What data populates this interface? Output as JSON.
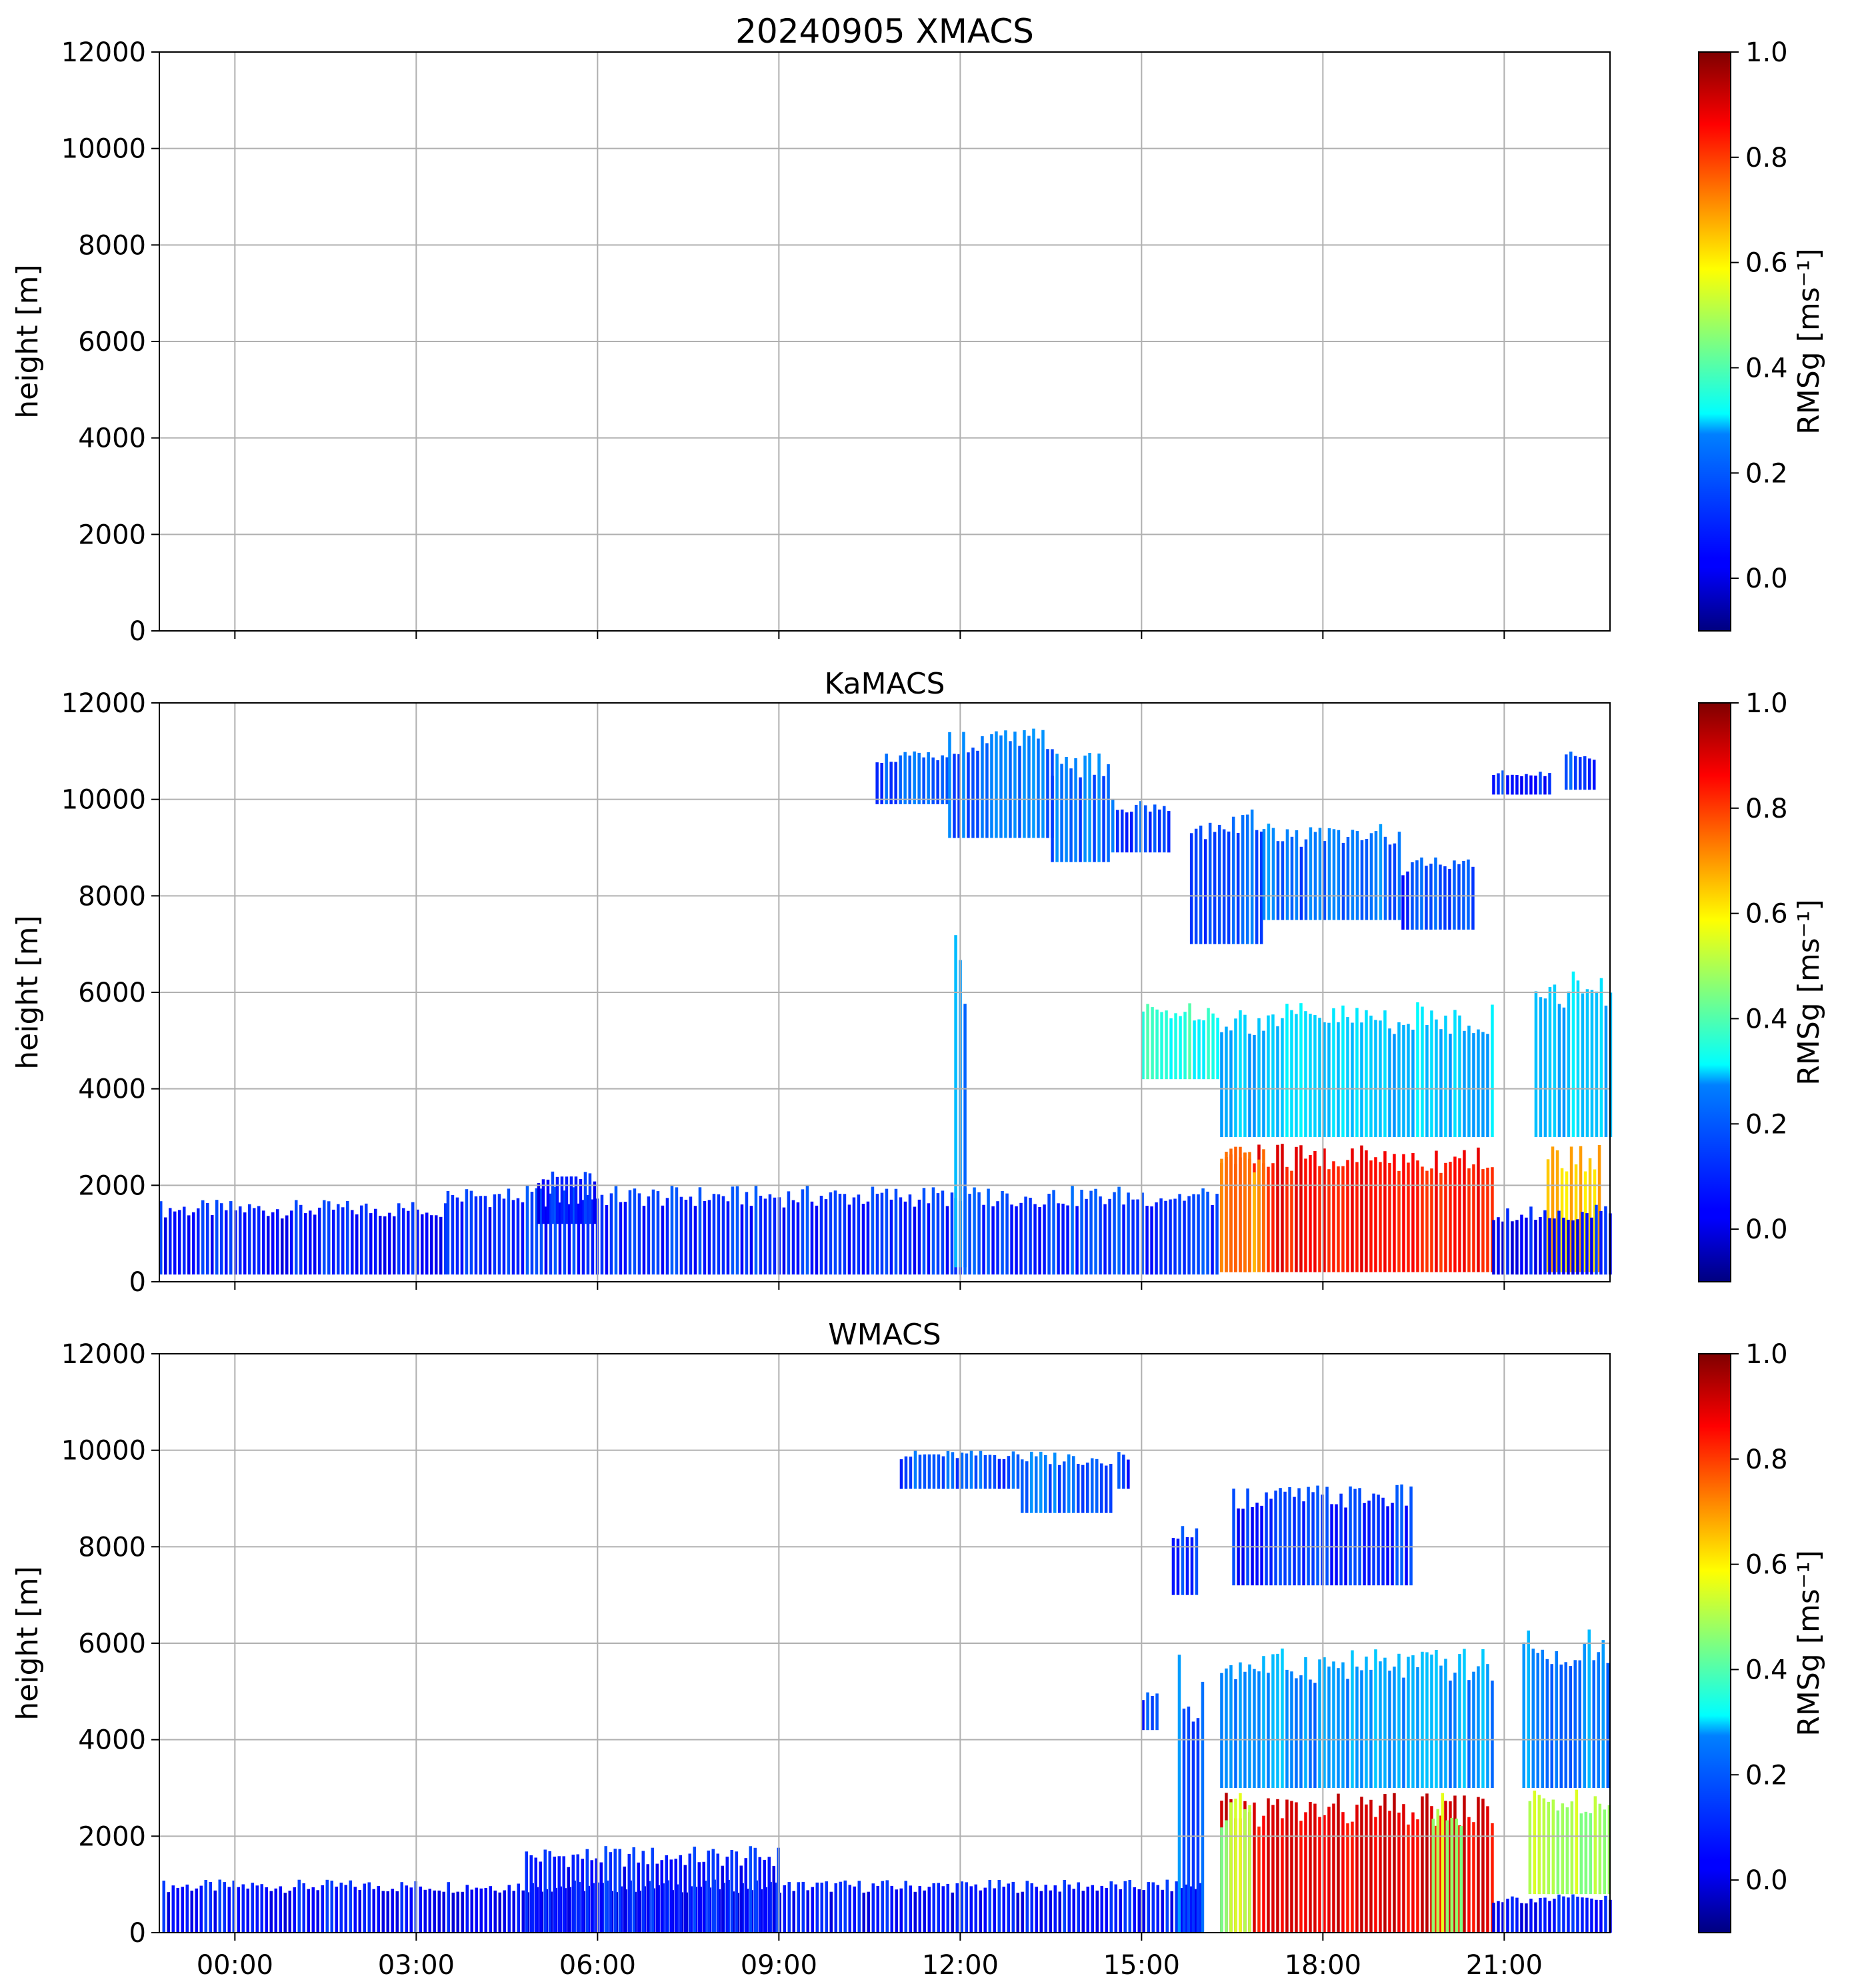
{
  "chart_data": [
    {
      "type": "heatmap",
      "title": "20240905 XMACS",
      "ylabel": "height [m]",
      "ylim": [
        0,
        12000
      ],
      "yticks": [
        "0",
        "2000",
        "4000",
        "6000",
        "8000",
        "10000",
        "12000"
      ],
      "xlim_hours": [
        -1.25,
        22.75
      ],
      "xtick_hours": [
        0,
        3,
        6,
        9,
        12,
        15,
        18,
        21
      ],
      "xticklabels": [],
      "grid": true,
      "regions": [],
      "colorbar": {
        "label": "RMSg [ms⁻¹]",
        "range": [
          -0.1,
          1.0
        ],
        "ticks": [
          "0.0",
          "0.2",
          "0.4",
          "0.6",
          "0.8",
          "1.0"
        ],
        "colormap": "jet"
      }
    },
    {
      "type": "heatmap",
      "title": "KaMACS",
      "ylabel": "height [m]",
      "ylim": [
        0,
        12000
      ],
      "yticks": [
        "0",
        "2000",
        "4000",
        "6000",
        "8000",
        "10000",
        "12000"
      ],
      "xlim_hours": [
        -1.25,
        22.75
      ],
      "xtick_hours": [
        0,
        3,
        6,
        9,
        12,
        15,
        18,
        21
      ],
      "xticklabels": [],
      "grid": true,
      "regions": [
        {
          "t0": -1.25,
          "t1": 3.5,
          "h0": 150,
          "h1": 1700,
          "v": 0.06
        },
        {
          "t0": 3.5,
          "t1": 11.9,
          "h0": 150,
          "h1": 2000,
          "v": 0.08
        },
        {
          "t0": 5.0,
          "t1": 6.0,
          "h0": 1200,
          "h1": 2300,
          "v": 0.06
        },
        {
          "t0": 11.9,
          "t1": 16.3,
          "h0": 150,
          "h1": 2000,
          "v": 0.1
        },
        {
          "t0": 11.9,
          "t1": 12.1,
          "h0": 300,
          "h1": 7500,
          "v": 0.2
        },
        {
          "t0": 10.6,
          "t1": 11.8,
          "h0": 9900,
          "h1": 11000,
          "v": 0.12
        },
        {
          "t0": 11.8,
          "t1": 13.5,
          "h0": 9200,
          "h1": 11500,
          "v": 0.15
        },
        {
          "t0": 13.5,
          "t1": 14.5,
          "h0": 8700,
          "h1": 11000,
          "v": 0.15
        },
        {
          "t0": 14.5,
          "t1": 15.5,
          "h0": 8900,
          "h1": 10000,
          "v": 0.12
        },
        {
          "t0": 15.8,
          "t1": 17.0,
          "h0": 7000,
          "h1": 9800,
          "v": 0.12
        },
        {
          "t0": 17.0,
          "t1": 19.3,
          "h0": 7500,
          "h1": 9500,
          "v": 0.15
        },
        {
          "t0": 19.3,
          "t1": 20.5,
          "h0": 7300,
          "h1": 8800,
          "v": 0.1
        },
        {
          "t0": 20.8,
          "t1": 21.8,
          "h0": 10100,
          "h1": 10600,
          "v": 0.08
        },
        {
          "t0": 22.0,
          "t1": 22.5,
          "h0": 10200,
          "h1": 11000,
          "v": 0.1
        },
        {
          "t0": 15.0,
          "t1": 16.3,
          "h0": 4200,
          "h1": 5800,
          "v": 0.35
        },
        {
          "t0": 16.3,
          "t1": 20.8,
          "h0": 3000,
          "h1": 5800,
          "v": 0.25
        },
        {
          "t0": 16.3,
          "t1": 20.8,
          "h0": 200,
          "h1": 2900,
          "v": 0.85
        },
        {
          "t0": 16.3,
          "t1": 17.0,
          "h0": 200,
          "h1": 2800,
          "v": 0.7
        },
        {
          "t0": 21.5,
          "t1": 22.75,
          "h0": 3000,
          "h1": 6500,
          "v": 0.25
        },
        {
          "t0": 21.7,
          "t1": 22.6,
          "h0": 200,
          "h1": 2900,
          "v": 0.65
        },
        {
          "t0": 20.8,
          "t1": 22.75,
          "h0": 150,
          "h1": 1600,
          "v": 0.05
        }
      ],
      "colorbar": {
        "label": "RMSg [ms⁻¹]",
        "range": [
          -0.1,
          1.0
        ],
        "ticks": [
          "0.0",
          "0.2",
          "0.4",
          "0.6",
          "0.8",
          "1.0"
        ],
        "colormap": "jet"
      }
    },
    {
      "type": "heatmap",
      "title": "WMACS",
      "ylabel": "height [m]",
      "ylim": [
        0,
        12000
      ],
      "yticks": [
        "0",
        "2000",
        "4000",
        "6000",
        "8000",
        "10000",
        "12000"
      ],
      "xlim_hours": [
        -1.25,
        22.75
      ],
      "xtick_hours": [
        0,
        3,
        6,
        9,
        12,
        15,
        18,
        21
      ],
      "xticklabels": [
        "00:00",
        "03:00",
        "06:00",
        "09:00",
        "12:00",
        "15:00",
        "18:00",
        "21:00"
      ],
      "grid": true,
      "regions": [
        {
          "t0": -1.2,
          "t1": 16.0,
          "h0": 0,
          "h1": 1100,
          "v": 0.05
        },
        {
          "t0": 4.8,
          "t1": 9.0,
          "h0": 0,
          "h1": 1800,
          "v": 0.06
        },
        {
          "t0": 11.0,
          "t1": 13.0,
          "h0": 9200,
          "h1": 10000,
          "v": 0.12
        },
        {
          "t0": 13.0,
          "t1": 14.5,
          "h0": 8700,
          "h1": 10000,
          "v": 0.15
        },
        {
          "t0": 14.6,
          "t1": 14.8,
          "h0": 9200,
          "h1": 10000,
          "v": 0.1
        },
        {
          "t0": 15.5,
          "t1": 15.9,
          "h0": 7000,
          "h1": 8500,
          "v": 0.1
        },
        {
          "t0": 16.5,
          "t1": 19.5,
          "h0": 7200,
          "h1": 9300,
          "v": 0.08
        },
        {
          "t0": 15.0,
          "t1": 15.3,
          "h0": 4200,
          "h1": 5000,
          "v": 0.1
        },
        {
          "t0": 15.6,
          "t1": 16.0,
          "h0": 0,
          "h1": 5800,
          "v": 0.15
        },
        {
          "t0": 16.3,
          "t1": 20.8,
          "h0": 3000,
          "h1": 5900,
          "v": 0.2
        },
        {
          "t0": 16.3,
          "t1": 20.8,
          "h0": 0,
          "h1": 2900,
          "v": 0.88
        },
        {
          "t0": 16.3,
          "t1": 16.8,
          "h0": 0,
          "h1": 2900,
          "v": 0.5
        },
        {
          "t0": 19.8,
          "t1": 20.3,
          "h0": 0,
          "h1": 2900,
          "v": 0.5
        },
        {
          "t0": 21.3,
          "t1": 22.75,
          "h0": 3000,
          "h1": 6300,
          "v": 0.18
        },
        {
          "t0": 21.4,
          "t1": 22.75,
          "h0": 800,
          "h1": 3000,
          "v": 0.5
        },
        {
          "t0": 20.8,
          "t1": 22.75,
          "h0": 0,
          "h1": 800,
          "v": 0.05
        }
      ],
      "colorbar": {
        "label": "RMSg [ms⁻¹]",
        "range": [
          -0.1,
          1.0
        ],
        "ticks": [
          "0.0",
          "0.2",
          "0.4",
          "0.6",
          "0.8",
          "1.0"
        ],
        "colormap": "jet"
      }
    }
  ]
}
